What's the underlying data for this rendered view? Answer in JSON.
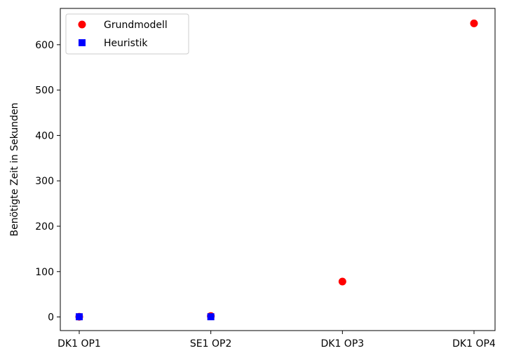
{
  "chart_data": {
    "type": "scatter",
    "categories": [
      "DK1 OP1",
      "SE1 OP2",
      "DK1 OP3",
      "DK1 OP4"
    ],
    "series": [
      {
        "name": "Grundmodell",
        "marker": "circle",
        "color": "#ff0000",
        "values": [
          0.5,
          2,
          78,
          647
        ]
      },
      {
        "name": "Heuristik",
        "marker": "square",
        "color": "#0000ff",
        "values": [
          0.5,
          0.5,
          null,
          null
        ]
      }
    ],
    "title": "",
    "xlabel": "",
    "ylabel": "Benötigte Zeit in Sekunden",
    "ylim": [
      -30,
      680
    ],
    "yticks": [
      0,
      100,
      200,
      300,
      400,
      500,
      600
    ],
    "grid": false,
    "legend_position": "top-left"
  }
}
